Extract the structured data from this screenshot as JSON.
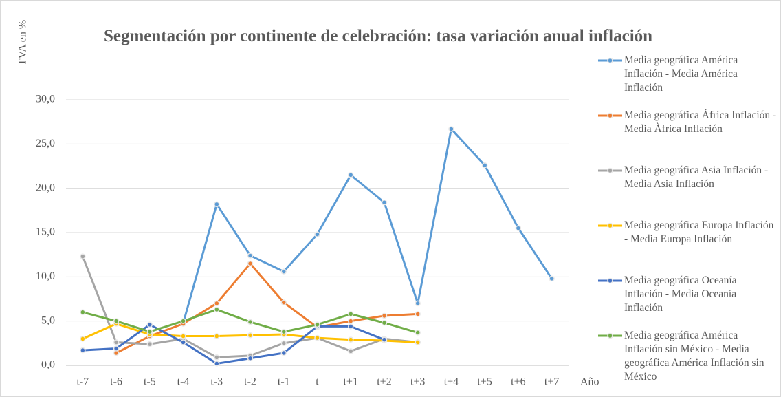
{
  "chart_data": {
    "type": "line",
    "title": "Segmentación por continente de celebración: tasa variación anual inflación",
    "y_label": "TVA en %",
    "x_label": "Año",
    "categories": [
      "t-7",
      "t-6",
      "t-5",
      "t-4",
      "t-3",
      "t-2",
      "t-1",
      "t",
      "t+1",
      "t+2",
      "t+3",
      "t+4",
      "t+5",
      "t+6",
      "t+7"
    ],
    "ylim": [
      0,
      30
    ],
    "yticks": [
      {
        "value": 0,
        "label": "0,0"
      },
      {
        "value": 5,
        "label": "5,0"
      },
      {
        "value": 10,
        "label": "10,0"
      },
      {
        "value": 15,
        "label": "15,0"
      },
      {
        "value": 20,
        "label": "20,0"
      },
      {
        "value": 25,
        "label": "25,0"
      },
      {
        "value": 30,
        "label": "30,0"
      }
    ],
    "grid": true,
    "legend": "right",
    "series": [
      {
        "name": "Media geográfica América Inflación - Media América Inflación",
        "color": "#5b9bd5",
        "values": [
          null,
          null,
          null,
          4.8,
          18.2,
          12.4,
          10.6,
          14.8,
          21.5,
          18.4,
          7.0,
          26.7,
          22.6,
          15.5,
          9.8
        ]
      },
      {
        "name": "Media geográfica África Inflación - Media Àfrica Inflación",
        "color": "#ed7d31",
        "values": [
          null,
          1.4,
          3.3,
          4.7,
          7.0,
          11.5,
          7.1,
          4.3,
          5.0,
          5.6,
          5.8,
          null,
          null,
          null,
          null
        ]
      },
      {
        "name": "Media geográfica Asia Inflación - Media Asia Inflación",
        "color": "#a5a5a5",
        "values": [
          12.3,
          2.6,
          2.4,
          3.0,
          0.9,
          1.1,
          2.5,
          3.1,
          1.6,
          3.0,
          2.6,
          null,
          null,
          null,
          null
        ]
      },
      {
        "name": "Media geográfica Europa Inflación - Media Europa Inflación",
        "color": "#ffc000",
        "values": [
          3.0,
          4.7,
          3.5,
          3.3,
          3.3,
          3.4,
          3.5,
          3.1,
          2.9,
          2.8,
          2.6,
          null,
          null,
          null,
          null
        ]
      },
      {
        "name": "Media geográfica Oceanía Inflación - Media Oceanía Inflación",
        "color": "#4472c4",
        "values": [
          1.7,
          1.9,
          4.6,
          2.6,
          0.2,
          0.8,
          1.4,
          4.4,
          4.4,
          2.9,
          null,
          null,
          null,
          null,
          null
        ]
      },
      {
        "name": "Media geográfica América Inflación sin México - Media geográfica América Inflación sin México",
        "color": "#70ad47",
        "values": [
          6.0,
          5.0,
          3.8,
          5.0,
          6.3,
          4.9,
          3.8,
          4.6,
          5.8,
          4.8,
          3.7,
          null,
          null,
          null,
          null
        ]
      }
    ]
  }
}
